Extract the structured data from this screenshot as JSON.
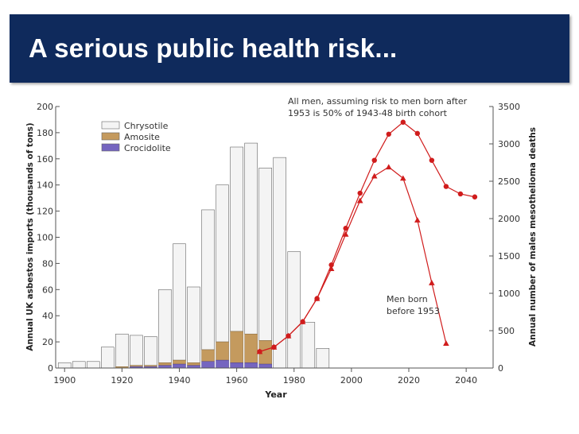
{
  "slide": {
    "title": "A serious public health risk...",
    "colors": {
      "title_bg": "#0f2a5c",
      "title_text": "#ffffff"
    }
  },
  "chart_data": {
    "type": "bar+line",
    "x": {
      "label": "Year",
      "range": [
        1898,
        2048
      ],
      "ticks": [
        1900,
        1920,
        1940,
        1960,
        1980,
        2000,
        2020,
        2040
      ]
    },
    "y_left": {
      "label": "Annual UK asbestos imports (thousands of tons)",
      "range": [
        0,
        200
      ],
      "ticks": [
        0,
        20,
        40,
        60,
        80,
        100,
        120,
        140,
        160,
        180,
        200
      ]
    },
    "y_right": {
      "label": "Annual number of males mesothelioma deaths",
      "range": [
        0,
        3500
      ],
      "ticks": [
        0,
        500,
        1000,
        1500,
        2000,
        2500,
        3000,
        3500
      ]
    },
    "legend": {
      "position": "top-left",
      "items": [
        {
          "name": "Chrysotile",
          "color": "#f4f4f4"
        },
        {
          "name": "Amosite",
          "color": "#c49a5e"
        },
        {
          "name": "Crocidolite",
          "color": "#7565c0"
        }
      ]
    },
    "bars": {
      "years": [
        1900,
        1905,
        1910,
        1915,
        1920,
        1925,
        1930,
        1935,
        1940,
        1945,
        1950,
        1955,
        1960,
        1965,
        1970,
        1975,
        1980,
        1985,
        1990
      ],
      "totals": [
        4,
        5,
        5,
        16,
        26,
        25,
        24,
        60,
        95,
        62,
        121,
        140,
        169,
        172,
        153,
        161,
        89,
        35,
        15
      ],
      "amosite": [
        0,
        0,
        0,
        0,
        1,
        1,
        1,
        2,
        3,
        2,
        9,
        14,
        24,
        22,
        18,
        0,
        0,
        0,
        0
      ],
      "crocidolite": [
        0,
        0,
        0,
        0,
        0,
        1,
        1,
        2,
        3,
        2,
        5,
        6,
        4,
        4,
        3,
        0,
        0,
        0,
        0
      ]
    },
    "series": [
      {
        "name": "All men",
        "axis": "right",
        "marker": "circle",
        "color": "#d01c1c",
        "x": [
          1968,
          1973,
          1978,
          1983,
          1988,
          1993,
          1998,
          2003,
          2008,
          2013,
          2018,
          2023,
          2028,
          2033,
          2038,
          2043
        ],
        "y": [
          220,
          280,
          430,
          620,
          930,
          1380,
          1870,
          2340,
          2780,
          3130,
          3290,
          3140,
          2780,
          2430,
          2330,
          2290
        ]
      },
      {
        "name": "Men born before 1953",
        "axis": "right",
        "marker": "triangle",
        "color": "#d01c1c",
        "x": [
          1968,
          1973,
          1978,
          1983,
          1988,
          1993,
          1998,
          2003,
          2008,
          2013,
          2018,
          2023,
          2028,
          2033
        ],
        "y": [
          220,
          280,
          430,
          620,
          930,
          1330,
          1790,
          2240,
          2570,
          2690,
          2540,
          1980,
          1140,
          330
        ]
      }
    ],
    "annotations": [
      {
        "lines": [
          "All men, assuming risk to men born after",
          "1953 is 50% of 1943-48 birth cohort"
        ]
      },
      {
        "lines": [
          "Men born",
          "before 1953"
        ]
      }
    ]
  }
}
